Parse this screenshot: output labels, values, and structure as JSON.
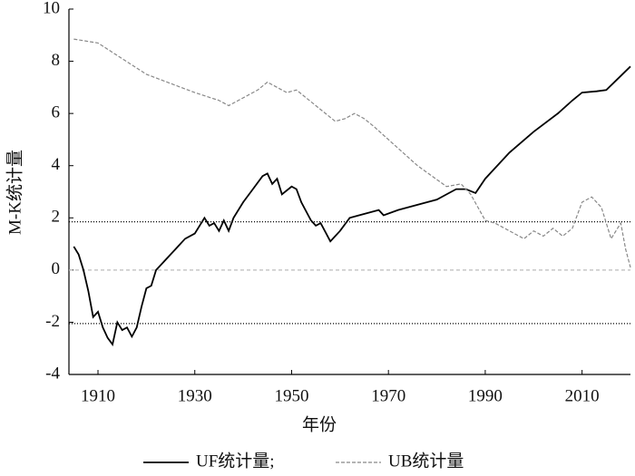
{
  "chart_data": {
    "type": "line",
    "xlabel": "年份",
    "ylabel": "M-K统计量",
    "xlim": [
      1904,
      2020
    ],
    "ylim": [
      -4,
      10
    ],
    "xticks": [
      1910,
      1930,
      1950,
      1970,
      1990,
      2010
    ],
    "yticks": [
      -4,
      -2,
      0,
      2,
      4,
      6,
      8,
      10
    ],
    "hlines": [
      {
        "value": 1.85,
        "color": "#000000",
        "dash": "1,2"
      },
      {
        "value": -2.05,
        "color": "#000000",
        "dash": "1,2"
      },
      {
        "value": 0,
        "color": "#bbbbbb",
        "dash": "4,3"
      }
    ],
    "series": [
      {
        "name": "UF统计量;",
        "color": "#000000",
        "dash": "none",
        "x": [
          1905,
          1906,
          1907,
          1908,
          1909,
          1910,
          1911,
          1912,
          1913,
          1914,
          1915,
          1916,
          1917,
          1918,
          1919,
          1920,
          1921,
          1922,
          1924,
          1926,
          1928,
          1930,
          1932,
          1933,
          1934,
          1935,
          1936,
          1937,
          1938,
          1940,
          1942,
          1944,
          1945,
          1946,
          1947,
          1948,
          1950,
          1951,
          1952,
          1954,
          1955,
          1956,
          1958,
          1960,
          1962,
          1964,
          1966,
          1968,
          1969,
          1972,
          1974,
          1976,
          1978,
          1980,
          1982,
          1984,
          1986,
          1988,
          1990,
          1995,
          2000,
          2005,
          2008,
          2010,
          2013,
          2015,
          2020
        ],
        "values": [
          0.9,
          0.6,
          0.0,
          -0.8,
          -1.8,
          -1.6,
          -2.2,
          -2.6,
          -2.85,
          -2.0,
          -2.3,
          -2.2,
          -2.55,
          -2.2,
          -1.4,
          -0.7,
          -0.6,
          0.0,
          0.4,
          0.8,
          1.2,
          1.4,
          2.0,
          1.7,
          1.8,
          1.5,
          1.9,
          1.5,
          2.0,
          2.6,
          3.1,
          3.6,
          3.7,
          3.3,
          3.5,
          2.9,
          3.2,
          3.1,
          2.6,
          1.9,
          1.7,
          1.8,
          1.1,
          1.5,
          2.0,
          2.1,
          2.2,
          2.3,
          2.1,
          2.3,
          2.4,
          2.5,
          2.6,
          2.7,
          2.9,
          3.1,
          3.1,
          2.95,
          3.5,
          4.5,
          5.3,
          6.0,
          6.5,
          6.8,
          6.85,
          6.9,
          7.8
        ]
      },
      {
        "name": "UB统计量",
        "color": "#888888",
        "dash": "4,2",
        "x": [
          1905,
          1910,
          1915,
          1920,
          1925,
          1930,
          1935,
          1937,
          1940,
          1943,
          1945,
          1947,
          1949,
          1951,
          1953,
          1955,
          1957,
          1959,
          1961,
          1963,
          1965,
          1967,
          1970,
          1973,
          1976,
          1979,
          1982,
          1985,
          1987,
          1990,
          1992,
          1994,
          1996,
          1998,
          2000,
          2002,
          2004,
          2006,
          2008,
          2010,
          2012,
          2014,
          2016,
          2018,
          2019,
          2020
        ],
        "values": [
          8.85,
          8.7,
          8.1,
          7.5,
          7.15,
          6.8,
          6.5,
          6.3,
          6.6,
          6.9,
          7.2,
          7.0,
          6.8,
          6.9,
          6.6,
          6.3,
          6.0,
          5.7,
          5.8,
          6.0,
          5.8,
          5.5,
          5.0,
          4.5,
          4.0,
          3.6,
          3.2,
          3.3,
          2.9,
          1.9,
          1.8,
          1.6,
          1.4,
          1.2,
          1.5,
          1.3,
          1.6,
          1.3,
          1.6,
          2.6,
          2.8,
          2.4,
          1.2,
          1.8,
          0.8,
          0.1
        ]
      }
    ]
  }
}
